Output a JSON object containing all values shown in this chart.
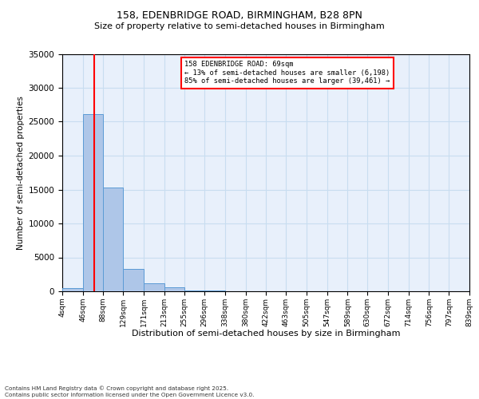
{
  "title1": "158, EDENBRIDGE ROAD, BIRMINGHAM, B28 8PN",
  "title2": "Size of property relative to semi-detached houses in Birmingham",
  "xlabel": "Distribution of semi-detached houses by size in Birmingham",
  "ylabel": "Number of semi-detached properties",
  "footnote": "Contains HM Land Registry data © Crown copyright and database right 2025.\nContains public sector information licensed under the Open Government Licence v3.0.",
  "annotation_line1": "158 EDENBRIDGE ROAD: 69sqm",
  "annotation_line2": "← 13% of semi-detached houses are smaller (6,198)",
  "annotation_line3": "85% of semi-detached houses are larger (39,461) →",
  "bin_edges": [
    4,
    46,
    88,
    129,
    171,
    213,
    255,
    296,
    338,
    380,
    422,
    463,
    505,
    547,
    589,
    630,
    672,
    714,
    756,
    797,
    839
  ],
  "bin_counts": [
    500,
    26100,
    15300,
    3350,
    1150,
    600,
    150,
    80,
    50,
    30,
    20,
    15,
    10,
    8,
    6,
    5,
    4,
    3,
    2,
    2
  ],
  "bar_color": "#aec6e8",
  "bar_edge_color": "#5b9bd5",
  "grid_color": "#c8ddf0",
  "background_color": "#e8f0fb",
  "vline_color": "red",
  "vline_x": 69,
  "ylim": [
    0,
    35000
  ],
  "yticks": [
    0,
    5000,
    10000,
    15000,
    20000,
    25000,
    30000,
    35000
  ]
}
